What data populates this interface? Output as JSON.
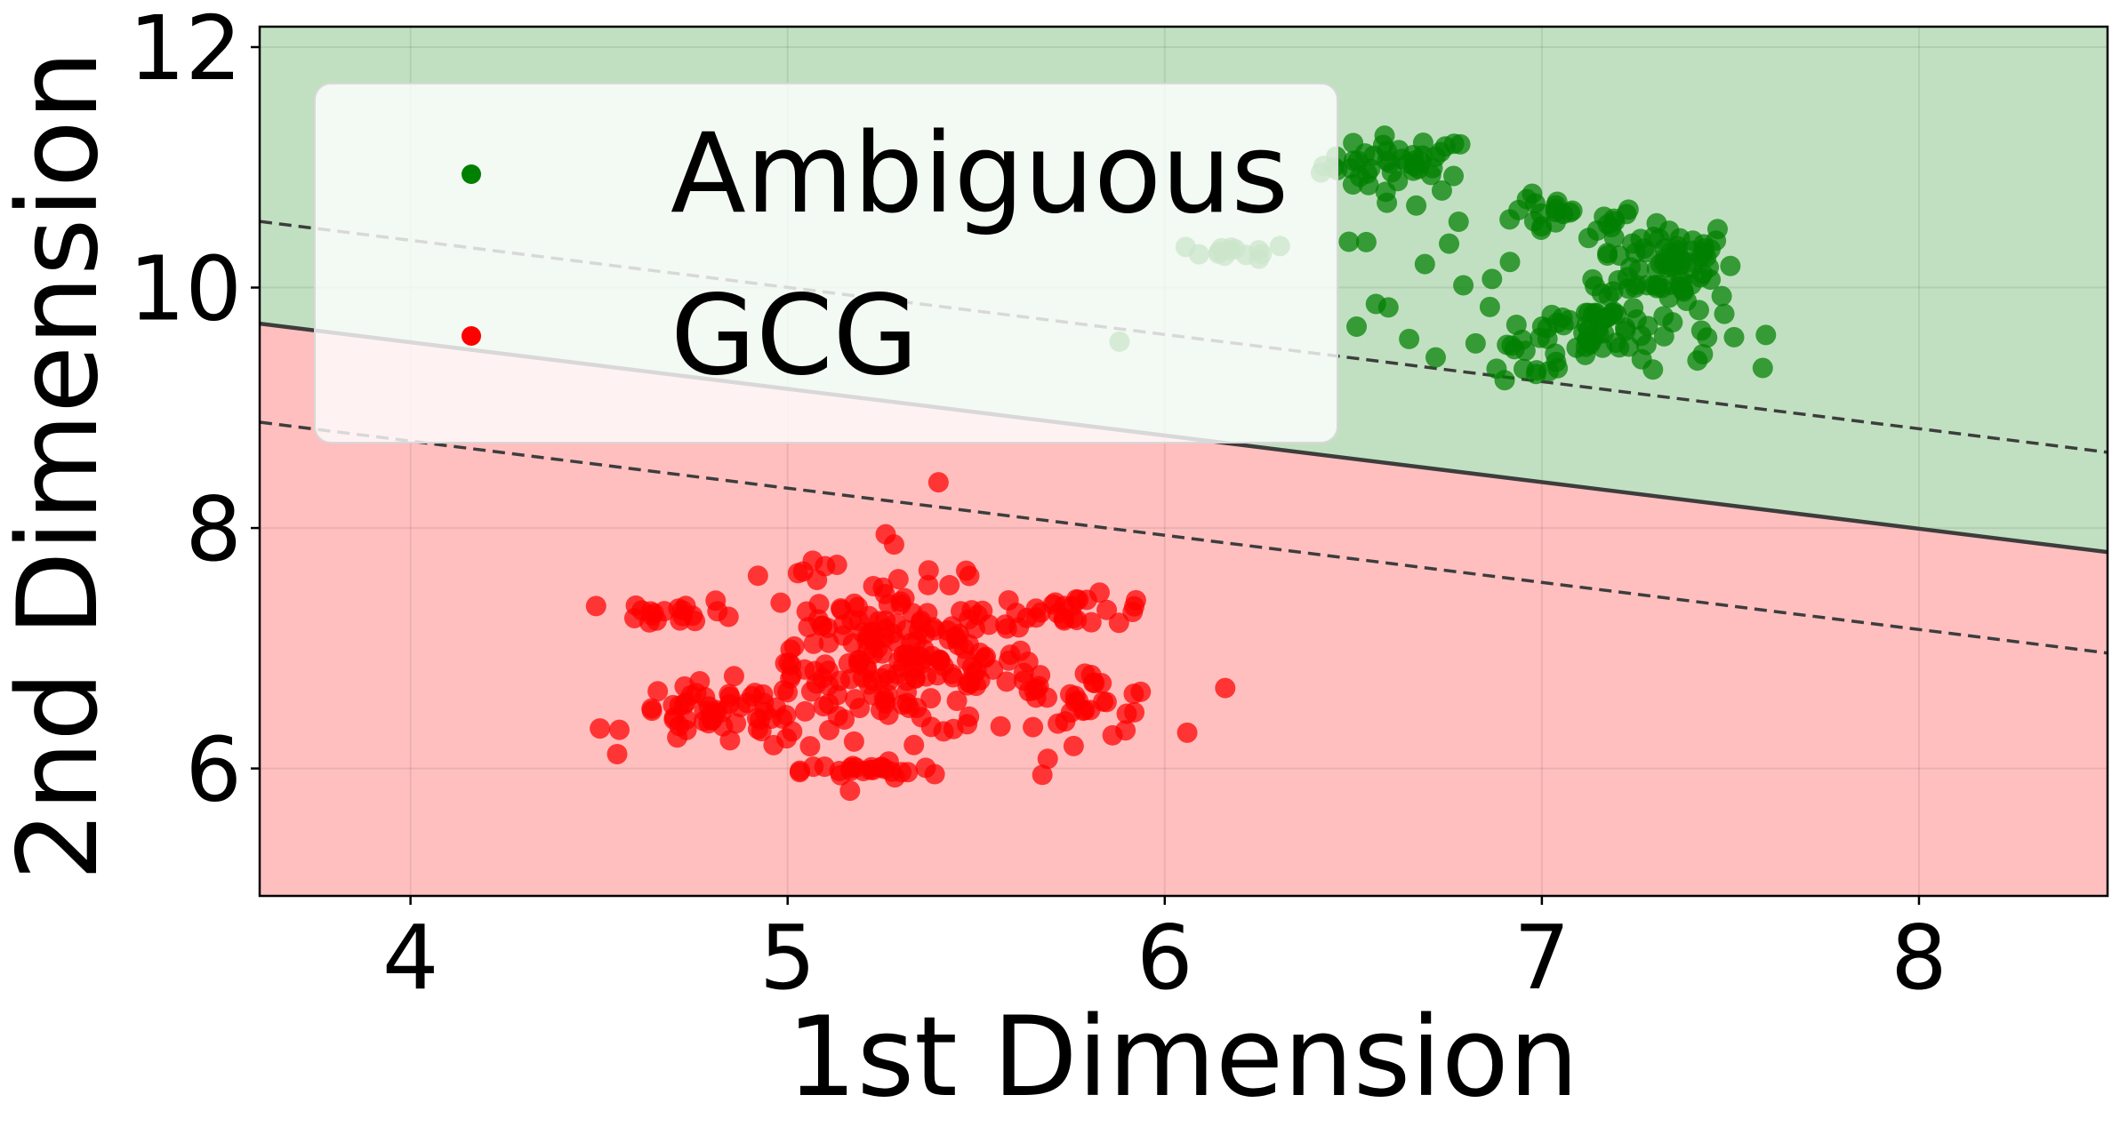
{
  "chart_data": {
    "type": "scatter",
    "xlabel": "1st Dimension",
    "ylabel": "2nd Dimension",
    "xlim": [
      3.6,
      8.5
    ],
    "ylim": [
      4.94,
      12.17
    ],
    "xticks": [
      4,
      5,
      6,
      7,
      8
    ],
    "yticks": [
      6,
      8,
      10,
      12
    ],
    "grid": true,
    "legend_position": "top-left",
    "colors": {
      "ambiguous": "#008000",
      "gcg": "#ff0000",
      "region_ambiguous": "#c1e0c1",
      "region_gcg": "#ffbfbf",
      "boundary": "#3d3d3d"
    },
    "decision_boundary": {
      "line": [
        [
          3.6,
          9.7
        ],
        [
          8.5,
          7.8
        ]
      ],
      "margin_upper": [
        [
          3.6,
          10.55
        ],
        [
          8.5,
          8.63
        ]
      ],
      "margin_lower": [
        [
          3.6,
          8.88
        ],
        [
          8.5,
          6.96
        ]
      ]
    },
    "series": [
      {
        "name": "Ambiguous",
        "color": "#008000",
        "clusters": [
          {
            "cx": 6.62,
            "cy": 11.02,
            "sx": 0.1,
            "sy": 0.12,
            "n": 45
          },
          {
            "cx": 6.2,
            "cy": 10.3,
            "sx": 0.07,
            "sy": 0.03,
            "n": 14
          },
          {
            "cx": 6.65,
            "cy": 10.1,
            "sx": 0.15,
            "sy": 0.35,
            "n": 12
          },
          {
            "cx": 7.05,
            "cy": 10.58,
            "sx": 0.12,
            "sy": 0.08,
            "n": 25
          },
          {
            "cx": 7.33,
            "cy": 10.22,
            "sx": 0.09,
            "sy": 0.18,
            "n": 70
          },
          {
            "cx": 7.15,
            "cy": 9.65,
            "sx": 0.16,
            "sy": 0.16,
            "n": 75
          },
          {
            "cx": 6.95,
            "cy": 9.4,
            "sx": 0.08,
            "sy": 0.08,
            "n": 8
          },
          {
            "cx": 5.88,
            "cy": 9.55,
            "sx": 0.0,
            "sy": 0.0,
            "n": 1
          }
        ]
      },
      {
        "name": "GCG",
        "color": "#ff0000",
        "clusters": [
          {
            "cx": 5.33,
            "cy": 6.9,
            "sx": 0.16,
            "sy": 0.32,
            "n": 150
          },
          {
            "cx": 4.82,
            "cy": 6.45,
            "sx": 0.12,
            "sy": 0.13,
            "n": 55
          },
          {
            "cx": 4.72,
            "cy": 7.3,
            "sx": 0.08,
            "sy": 0.05,
            "n": 20
          },
          {
            "cx": 5.75,
            "cy": 7.32,
            "sx": 0.13,
            "sy": 0.06,
            "n": 28
          },
          {
            "cx": 5.75,
            "cy": 6.55,
            "sx": 0.13,
            "sy": 0.15,
            "n": 40
          },
          {
            "cx": 5.08,
            "cy": 6.95,
            "sx": 0.1,
            "sy": 0.45,
            "n": 45
          },
          {
            "cx": 5.22,
            "cy": 5.98,
            "sx": 0.09,
            "sy": 0.03,
            "n": 22
          },
          {
            "cx": 5.4,
            "cy": 8.38,
            "sx": 0.0,
            "sy": 0.0,
            "n": 1
          }
        ]
      }
    ],
    "legend": [
      "Ambiguous",
      "GCG"
    ]
  }
}
